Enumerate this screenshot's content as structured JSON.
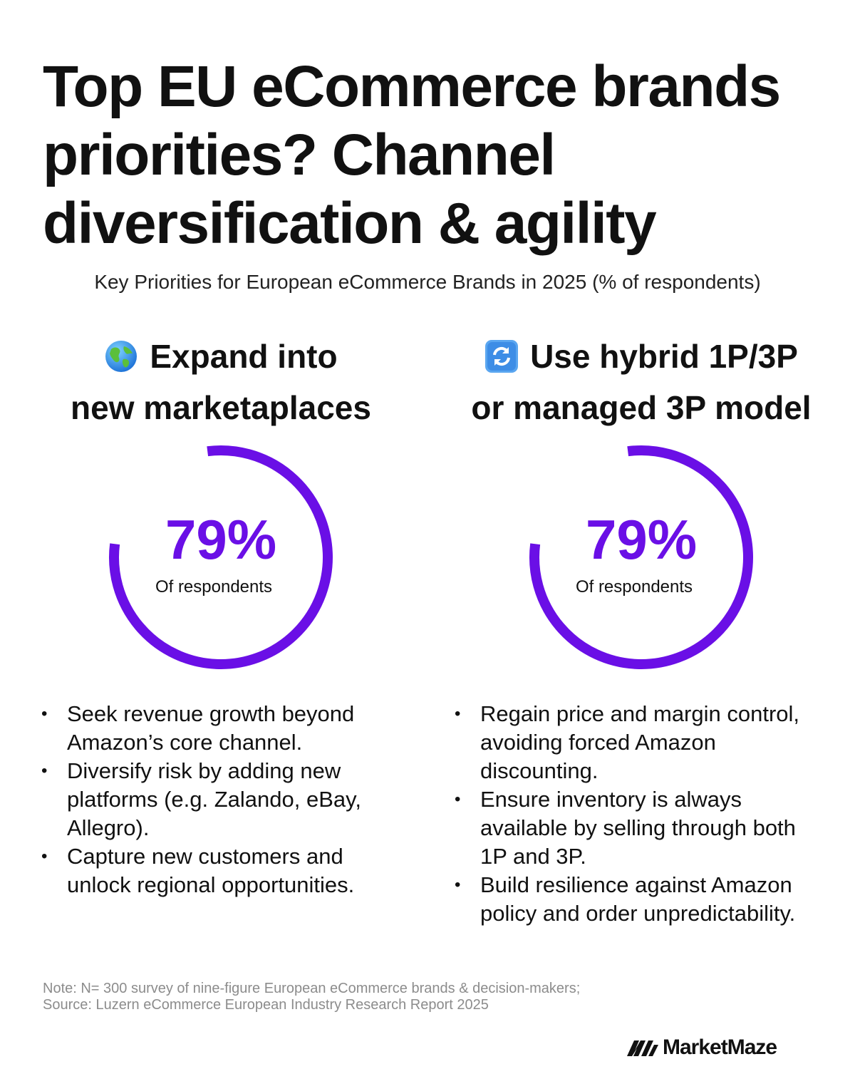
{
  "title": "Top EU eCommerce brands priorities? Channel diversification & agility",
  "subtitle": "Key Priorities for European eCommerce Brands in 2025 (% of respondents)",
  "panels": [
    {
      "icon": "globe-icon",
      "heading_line1": "Expand into",
      "heading_line2": "new marketaplaces",
      "value_text": "79%",
      "value_label": "Of respondents",
      "bullets": [
        "Seek revenue growth beyond Amazon’s core channel.",
        "Diversify risk by adding new platforms (e.g. Zalando, eBay, Allegro).",
        "Capture new customers and unlock regional opportunities."
      ]
    },
    {
      "icon": "refresh-icon",
      "heading_line1": "Use hybrid 1P/3P",
      "heading_line2": "or managed 3P model",
      "value_text": "79%",
      "value_label": "Of respondents",
      "bullets": [
        "Regain price and margin control, avoiding forced Amazon discounting.",
        "Ensure inventory is always available by selling through both 1P and 3P.",
        "Build resilience against Amazon policy and order unpredictability."
      ]
    }
  ],
  "chart_data": [
    {
      "type": "pie",
      "title": "Expand into new marketaplaces",
      "values": [
        79
      ],
      "unit": "%",
      "max": 100,
      "colors": [
        "#6a0fe6"
      ]
    },
    {
      "type": "pie",
      "title": "Use hybrid 1P/3P or managed 3P model",
      "values": [
        79
      ],
      "unit": "%",
      "max": 100,
      "colors": [
        "#6a0fe6"
      ]
    }
  ],
  "note": "Note: N= 300 survey of nine-figure European eCommerce brands & decision-makers; Source: Luzern eCommerce European Industry Research Report 2025",
  "brand": {
    "name": "MarketMaze",
    "icon": "marketmaze-logo-icon"
  },
  "colors": {
    "accent": "#6a0fe6",
    "text": "#111111",
    "note": "#8c8c8c"
  }
}
